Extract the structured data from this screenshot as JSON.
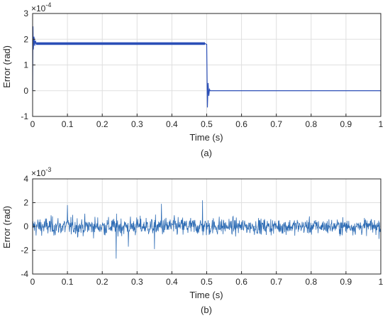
{
  "figure": {
    "caption_a": "(a)",
    "caption_b": "(b)"
  },
  "chart_data": [
    {
      "type": "line",
      "panel": "a",
      "xlabel": "Time (s)",
      "ylabel": "Error (rad)",
      "exponent_label": "×10",
      "exponent_power": "-4",
      "xlim": [
        0,
        1
      ],
      "ylim": [
        -1,
        3
      ],
      "xticks": [
        "0",
        "0.1",
        "0.2",
        "0.3",
        "0.4",
        "0.5",
        "0.6",
        "0.7",
        "0.8",
        "0.9",
        "1"
      ],
      "yticks": [
        "-1",
        "0",
        "1",
        "2",
        "3"
      ],
      "grid": true,
      "line_color": "#2b4fb7",
      "series": [
        {
          "x": [
            0,
            0.001,
            0.002,
            0.004,
            0.006,
            0.008,
            0.01,
            0.02,
            0.1,
            0.2,
            0.3,
            0.4,
            0.495,
            0.5,
            0.502,
            0.504,
            0.506,
            0.508,
            0.51,
            0.52,
            1.0
          ],
          "y": [
            0,
            2.5,
            1.6,
            2.1,
            1.75,
            1.95,
            1.82,
            1.83,
            1.83,
            1.83,
            1.83,
            1.83,
            1.83,
            1.8,
            -0.65,
            0.3,
            -0.2,
            0.05,
            0.0,
            0.0,
            0.0
          ]
        }
      ],
      "band": {
        "x": [
          0.01,
          0.495
        ],
        "y": [
          1.78,
          1.88
        ]
      }
    },
    {
      "type": "line",
      "panel": "b",
      "xlabel": "Time (s)",
      "ylabel": "Error (rad)",
      "exponent_label": "×10",
      "exponent_power": "-3",
      "xlim": [
        0,
        1
      ],
      "ylim": [
        -4,
        4
      ],
      "xticks": [
        "0",
        "0.1",
        "0.2",
        "0.3",
        "0.4",
        "0.5",
        "0.6",
        "0.7",
        "0.8",
        "0.9",
        "1"
      ],
      "yticks": [
        "-4",
        "-2",
        "0",
        "2",
        "4"
      ],
      "grid": true,
      "line_color": "#2f6db5",
      "noise": {
        "points": 1000,
        "std": 0.55,
        "amplitude_range": [
          -2.7,
          2.2
        ]
      },
      "peaks": [
        {
          "x": 0.24,
          "y": -2.7
        },
        {
          "x": 0.488,
          "y": 2.2
        },
        {
          "x": 0.37,
          "y": 1.9
        },
        {
          "x": 0.1,
          "y": 1.8
        },
        {
          "x": 0.275,
          "y": -1.7
        },
        {
          "x": 0.35,
          "y": -1.9
        }
      ]
    }
  ]
}
